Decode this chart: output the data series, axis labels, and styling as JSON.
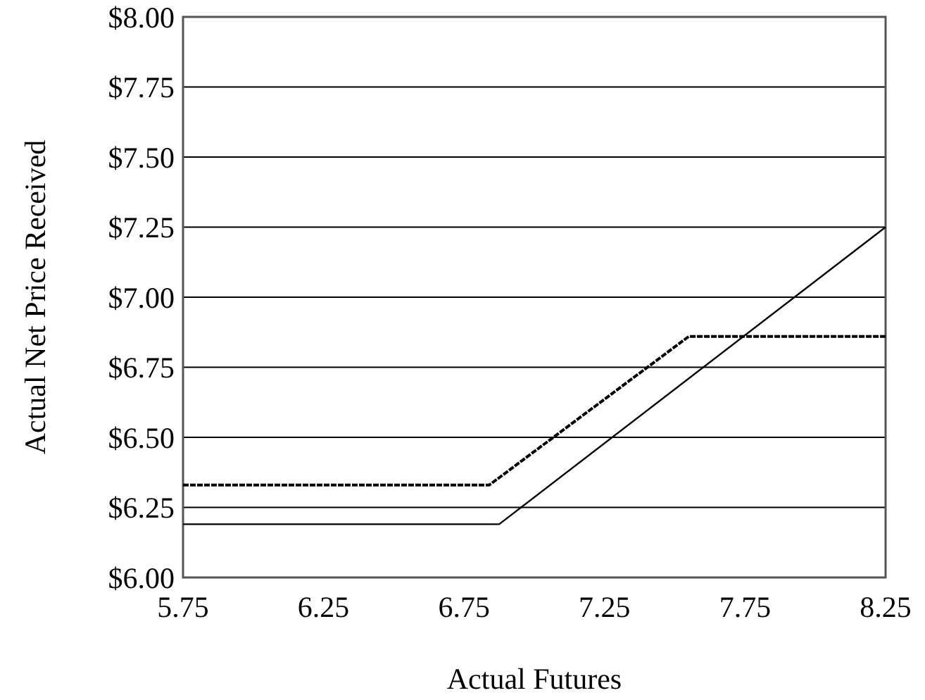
{
  "chart_data": {
    "type": "line",
    "xlabel": "Actual Futures",
    "ylabel": "Actual Net Price Received",
    "xlim": [
      5.75,
      8.25
    ],
    "xticks": [
      5.75,
      6.25,
      6.75,
      7.25,
      7.75,
      8.25
    ],
    "ylim": [
      6,
      8
    ],
    "yticks": [
      {
        "value": 6,
        "label": "$6.00"
      },
      {
        "value": 6.25,
        "label": "$6.25"
      },
      {
        "value": 6.5,
        "label": "$6.50"
      },
      {
        "value": 6.75,
        "label": "$6.75"
      },
      {
        "value": 7,
        "label": "$7.00"
      },
      {
        "value": 7.25,
        "label": "$7.25"
      },
      {
        "value": 7.5,
        "label": "$7.50"
      },
      {
        "value": 7.75,
        "label": "$7.75"
      },
      {
        "value": 8,
        "label": "$8.00"
      }
    ],
    "grid": "y",
    "marker": "none",
    "series": [
      {
        "color": "#000000",
        "line_style": "dashed",
        "x": [
          5.75,
          6.84,
          7.55,
          8.25
        ],
        "values": [
          6.33,
          6.33,
          6.86,
          6.86
        ]
      },
      {
        "color": "#000000",
        "line_style": "solid",
        "x": [
          5.75,
          6.875,
          8.25
        ],
        "values": [
          6.19,
          6.19,
          7.25
        ]
      }
    ]
  }
}
